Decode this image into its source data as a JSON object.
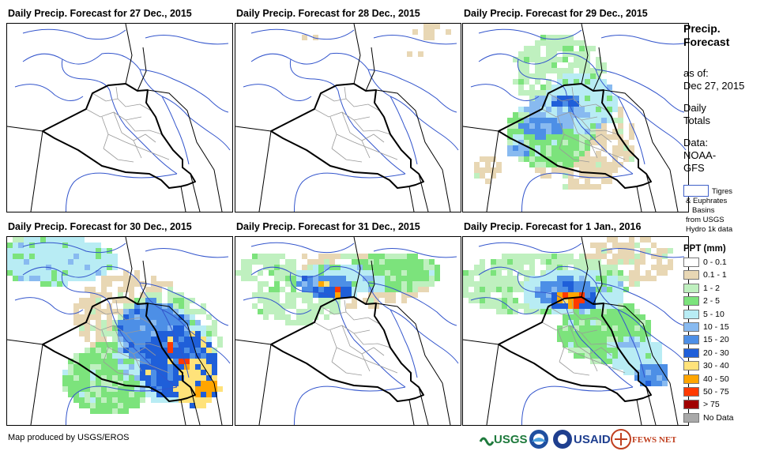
{
  "panels": [
    {
      "title": "Daily Precip. Forecast for 27 Dec., 2015",
      "pattern": "none"
    },
    {
      "title": "Daily Precip. Forecast for 28 Dec., 2015",
      "pattern": "sparse"
    },
    {
      "title": "Daily Precip. Forecast for 29 Dec., 2015",
      "pattern": "band"
    },
    {
      "title": "Daily Precip. Forecast for 30 Dec., 2015",
      "pattern": "southeast"
    },
    {
      "title": "Daily Precip. Forecast for 31 Dec., 2015",
      "pattern": "north"
    },
    {
      "title": "Daily Precip. Forecast for 1 Jan., 2016",
      "pattern": "northeast"
    }
  ],
  "sidebar": {
    "title_line1": "Precip.",
    "title_line2": "Forecast",
    "asof_label": "as of:",
    "asof_date": "Dec 27, 2015",
    "daily_line1": "Daily",
    "daily_line2": "Totals",
    "data_line1": "Data:",
    "data_line2": "NOAA-",
    "data_line3": "GFS",
    "basin_line1": "Tigres",
    "basin_line2": "& Euphrates",
    "basin_line3": "Basins",
    "basin_line4": "from USGS",
    "basin_line5": "Hydro 1k data"
  },
  "legend": {
    "title": "PPT (mm)",
    "items": [
      {
        "label": "0 - 0.1",
        "color": "#ffffff"
      },
      {
        "label": "0.1 - 1",
        "color": "#e8d7b4"
      },
      {
        "label": "1 - 2",
        "color": "#bff0bf"
      },
      {
        "label": "2 - 5",
        "color": "#7ce37c"
      },
      {
        "label": "5 - 10",
        "color": "#b8ecf4"
      },
      {
        "label": "10 - 15",
        "color": "#88baf0"
      },
      {
        "label": "15 - 20",
        "color": "#4d8fe6"
      },
      {
        "label": "20 - 30",
        "color": "#1f5fd9"
      },
      {
        "label": "30 - 40",
        "color": "#ffe27a"
      },
      {
        "label": "40 - 50",
        "color": "#ffa500"
      },
      {
        "label": "50 - 75",
        "color": "#ff3a00"
      },
      {
        "label": "> 75",
        "color": "#a00000"
      },
      {
        "label": "No Data",
        "color": "#a9a9a9"
      }
    ]
  },
  "footer": {
    "credit": "Map produced by USGS/EROS",
    "logo_usgs": "USGS",
    "logo_usaid": "USAID",
    "logo_fewsnet": "FEWS NET"
  },
  "colors": {
    "country_border": "#000000",
    "admin_border": "#999999",
    "river_basin": "#3355cc"
  }
}
